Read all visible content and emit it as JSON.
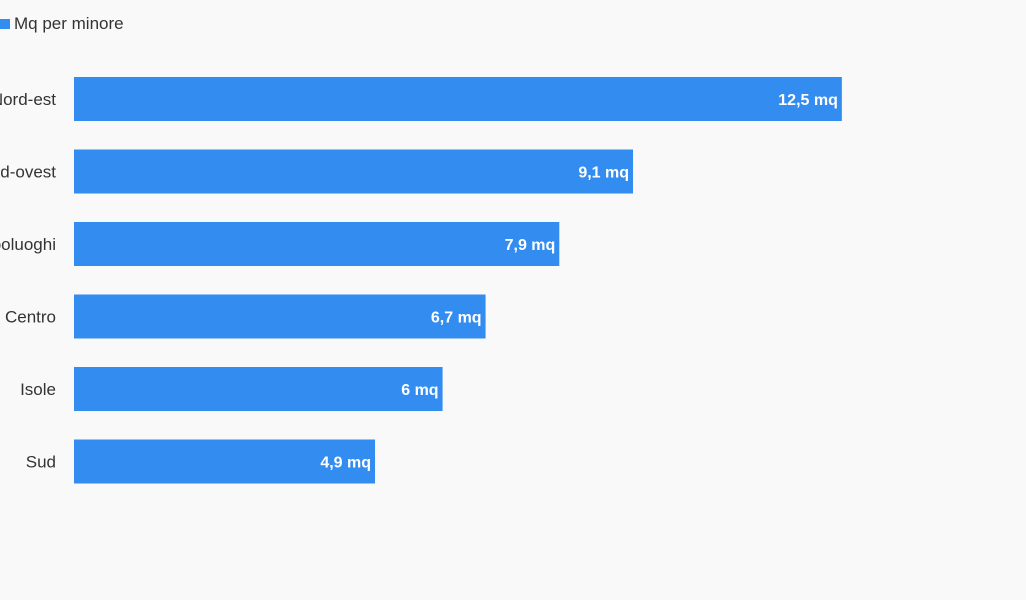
{
  "chart_data": {
    "type": "bar",
    "orientation": "horizontal",
    "categories": [
      "Nord-est",
      "Nord-ovest",
      "Capoluoghi",
      "Centro",
      "Isole",
      "Sud"
    ],
    "series": [
      {
        "name": "Mq per minore",
        "values": [
          12.5,
          9.1,
          7.9,
          6.7,
          6,
          4.9
        ],
        "labels": [
          "12,5 mq",
          "9,1 mq",
          "7,9 mq",
          "6,7 mq",
          "6 mq",
          "4,9 mq"
        ],
        "color": "#338cf0"
      }
    ],
    "legend": "top-left",
    "grid": false
  }
}
